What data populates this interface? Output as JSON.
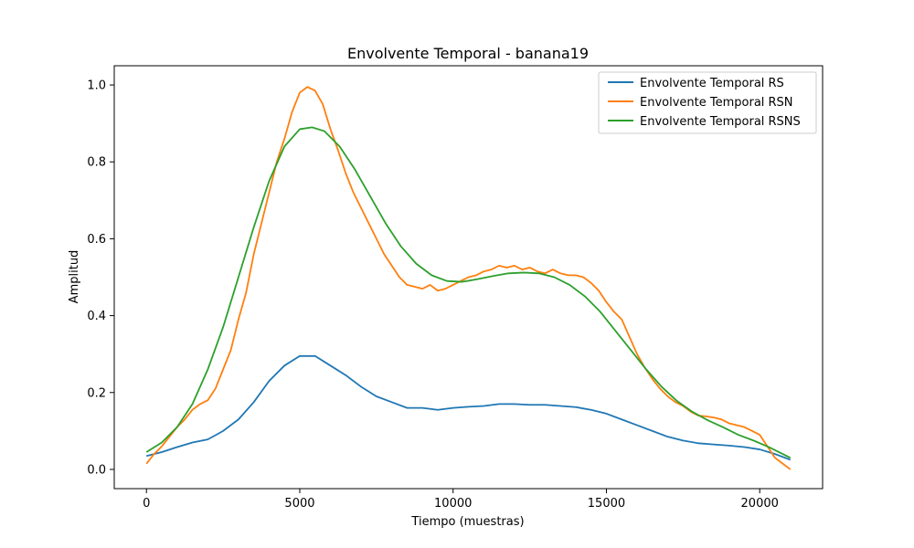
{
  "chart_data": {
    "type": "line",
    "title": "Envolvente Temporal - banana19",
    "xlabel": "Tiempo (muestras)",
    "ylabel": "Amplitud",
    "xlim": [
      -1050,
      22050
    ],
    "ylim": [
      -0.05,
      1.05
    ],
    "xticks": [
      0,
      5000,
      10000,
      15000,
      20000
    ],
    "yticks": [
      0.0,
      0.2,
      0.4,
      0.6,
      0.8,
      1.0
    ],
    "ytick_labels": [
      "0.0",
      "0.2",
      "0.4",
      "0.6",
      "0.8",
      "1.0"
    ],
    "grid": false,
    "legend_position": "top-right",
    "series": [
      {
        "name": "Envolvente Temporal RS",
        "color": "#1f77b4",
        "x": [
          0,
          500,
          1000,
          1500,
          2000,
          2500,
          3000,
          3500,
          4000,
          4500,
          5000,
          5500,
          6000,
          6500,
          7000,
          7500,
          8000,
          8500,
          9000,
          9500,
          10000,
          10500,
          11000,
          11500,
          12000,
          12500,
          13000,
          13500,
          14000,
          14500,
          15000,
          15500,
          16000,
          16500,
          17000,
          17500,
          18000,
          18500,
          19000,
          19500,
          20000,
          20500,
          21000
        ],
        "values": [
          0.035,
          0.045,
          0.058,
          0.07,
          0.078,
          0.1,
          0.13,
          0.175,
          0.23,
          0.27,
          0.295,
          0.295,
          0.27,
          0.245,
          0.215,
          0.19,
          0.175,
          0.16,
          0.16,
          0.155,
          0.16,
          0.163,
          0.165,
          0.17,
          0.17,
          0.168,
          0.168,
          0.165,
          0.162,
          0.155,
          0.145,
          0.13,
          0.115,
          0.1,
          0.085,
          0.075,
          0.068,
          0.065,
          0.062,
          0.058,
          0.052,
          0.04,
          0.025
        ]
      },
      {
        "name": "Envolvente Temporal RSN",
        "color": "#ff7f0e",
        "x": [
          0,
          250,
          500,
          750,
          1000,
          1250,
          1500,
          1750,
          2000,
          2250,
          2500,
          2750,
          3000,
          3250,
          3500,
          3750,
          4000,
          4250,
          4500,
          4750,
          5000,
          5250,
          5500,
          5750,
          6000,
          6250,
          6500,
          6750,
          7000,
          7250,
          7500,
          7750,
          8000,
          8250,
          8500,
          8750,
          9000,
          9250,
          9500,
          9750,
          10000,
          10250,
          10500,
          10750,
          11000,
          11250,
          11500,
          11750,
          12000,
          12250,
          12500,
          12750,
          13000,
          13250,
          13500,
          13750,
          14000,
          14250,
          14500,
          14750,
          15000,
          15250,
          15500,
          15750,
          16000,
          16250,
          16500,
          16750,
          17000,
          17250,
          17500,
          17750,
          18000,
          18250,
          18500,
          18750,
          19000,
          19250,
          19500,
          19750,
          20000,
          20250,
          20500,
          20750,
          21000
        ],
        "values": [
          0.015,
          0.04,
          0.06,
          0.085,
          0.11,
          0.13,
          0.155,
          0.17,
          0.18,
          0.21,
          0.26,
          0.31,
          0.39,
          0.46,
          0.56,
          0.64,
          0.72,
          0.8,
          0.86,
          0.93,
          0.98,
          0.995,
          0.985,
          0.95,
          0.885,
          0.83,
          0.77,
          0.72,
          0.68,
          0.64,
          0.6,
          0.56,
          0.53,
          0.5,
          0.48,
          0.475,
          0.47,
          0.48,
          0.465,
          0.47,
          0.48,
          0.49,
          0.5,
          0.505,
          0.515,
          0.52,
          0.53,
          0.525,
          0.53,
          0.52,
          0.525,
          0.515,
          0.51,
          0.52,
          0.51,
          0.505,
          0.505,
          0.5,
          0.485,
          0.465,
          0.435,
          0.41,
          0.39,
          0.345,
          0.3,
          0.265,
          0.235,
          0.21,
          0.19,
          0.175,
          0.165,
          0.15,
          0.14,
          0.138,
          0.135,
          0.13,
          0.12,
          0.115,
          0.11,
          0.1,
          0.09,
          0.06,
          0.03,
          0.015,
          0.0
        ]
      },
      {
        "name": "Envolvente Temporal RSNS",
        "color": "#2ca02c",
        "x": [
          0,
          500,
          1000,
          1500,
          2000,
          2500,
          3000,
          3500,
          4000,
          4500,
          5000,
          5400,
          5800,
          6300,
          6800,
          7300,
          7800,
          8300,
          8800,
          9300,
          9800,
          10300,
          10800,
          11300,
          11800,
          12300,
          12800,
          13300,
          13800,
          14300,
          14800,
          15300,
          15800,
          16300,
          16800,
          17300,
          17800,
          18300,
          18800,
          19300,
          19800,
          20300,
          20800,
          21000
        ],
        "values": [
          0.045,
          0.07,
          0.11,
          0.17,
          0.26,
          0.37,
          0.5,
          0.63,
          0.75,
          0.84,
          0.885,
          0.89,
          0.88,
          0.84,
          0.78,
          0.71,
          0.64,
          0.58,
          0.535,
          0.505,
          0.49,
          0.488,
          0.495,
          0.503,
          0.51,
          0.512,
          0.51,
          0.5,
          0.48,
          0.45,
          0.41,
          0.36,
          0.31,
          0.26,
          0.215,
          0.178,
          0.15,
          0.128,
          0.11,
          0.09,
          0.075,
          0.058,
          0.038,
          0.03
        ]
      }
    ]
  }
}
